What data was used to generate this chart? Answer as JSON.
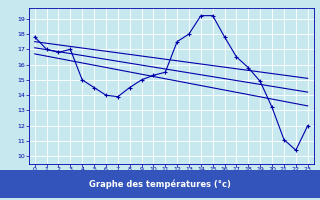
{
  "xlabel": "Graphe des températures (°c)",
  "bg_color": "#c8e8f0",
  "line_color": "#0000aa",
  "grid_color": "#ffffff",
  "label_bg_color": "#3355bb",
  "label_text_color": "#ffffff",
  "x_ticks": [
    0,
    1,
    2,
    3,
    4,
    5,
    6,
    7,
    8,
    9,
    10,
    11,
    12,
    13,
    14,
    15,
    16,
    17,
    18,
    19,
    20,
    21,
    22,
    23
  ],
  "y_ticks": [
    10,
    11,
    12,
    13,
    14,
    15,
    16,
    17,
    18,
    19
  ],
  "xlim": [
    -0.5,
    23.5
  ],
  "ylim": [
    9.5,
    19.7
  ],
  "main_x": [
    0,
    1,
    2,
    3,
    4,
    5,
    6,
    7,
    8,
    9,
    10,
    11,
    12,
    13,
    14,
    15,
    16,
    17,
    18,
    19,
    20,
    21,
    22,
    23
  ],
  "main_y": [
    17.8,
    17.0,
    16.8,
    17.0,
    15.0,
    14.5,
    14.0,
    13.9,
    14.5,
    15.0,
    15.3,
    15.5,
    17.5,
    18.0,
    19.2,
    19.2,
    17.8,
    16.5,
    15.8,
    14.9,
    13.2,
    11.1,
    10.4,
    12.0
  ],
  "trend1_x": [
    0,
    23
  ],
  "trend1_y": [
    17.5,
    15.1
  ],
  "trend2_x": [
    0,
    23
  ],
  "trend2_y": [
    17.1,
    14.2
  ],
  "trend3_x": [
    0,
    23
  ],
  "trend3_y": [
    16.7,
    13.3
  ],
  "tick_fontsize": 4.5,
  "xlabel_fontsize": 6.0,
  "fig_width": 3.2,
  "fig_height": 2.0,
  "dpi": 100
}
